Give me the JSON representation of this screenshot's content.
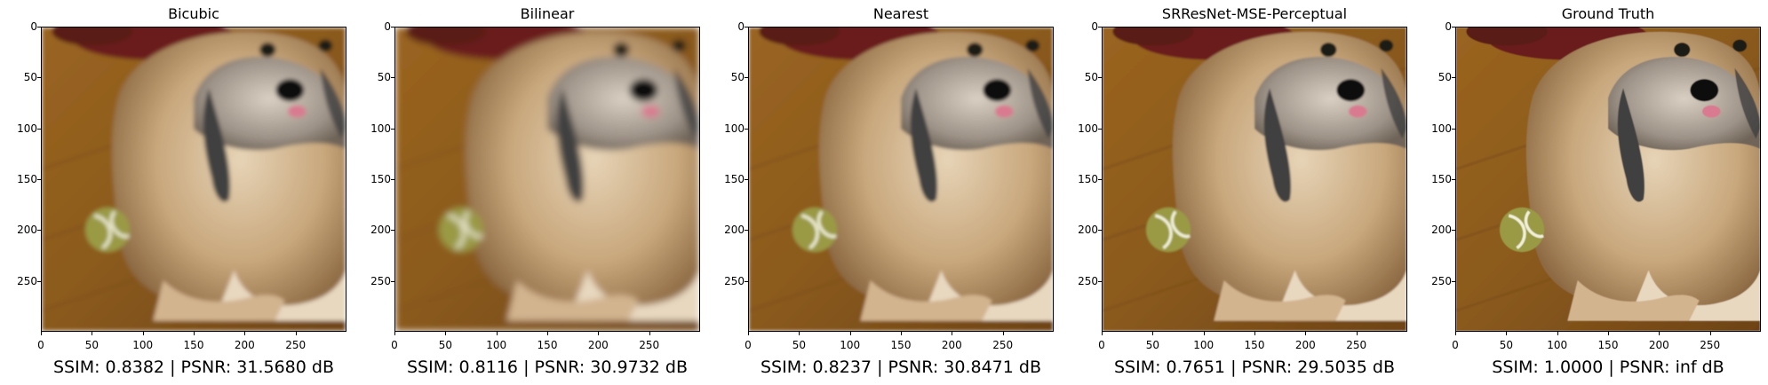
{
  "axis": {
    "y_ticks": [
      "0",
      "50",
      "100",
      "150",
      "200",
      "250"
    ],
    "x_ticks": [
      "0",
      "50",
      "100",
      "150",
      "200",
      "250"
    ]
  },
  "panels": [
    {
      "title": "Bicubic",
      "caption": "SSIM: 0.8382 | PSNR: 31.5680 dB",
      "blur": 2.2
    },
    {
      "title": "Bilinear",
      "caption": "SSIM: 0.8116 | PSNR: 30.9732 dB",
      "blur": 3.2
    },
    {
      "title": "Nearest",
      "caption": "SSIM: 0.8237 | PSNR: 30.8471 dB",
      "blur": 1.6
    },
    {
      "title": "SRResNet-MSE-Perceptual",
      "caption": "SSIM: 0.7651 | PSNR: 29.5035 dB",
      "blur": 0.9
    },
    {
      "title": "Ground Truth",
      "caption": "SSIM: 1.0000 | PSNR: inf dB",
      "blur": 0.4
    }
  ],
  "colors": {
    "floor": "#8a5a1e",
    "fur": "#c8a77c",
    "dark_fur": "#3f3f3f",
    "ball": "#9a9a45",
    "rug": "#6a1f1c"
  }
}
